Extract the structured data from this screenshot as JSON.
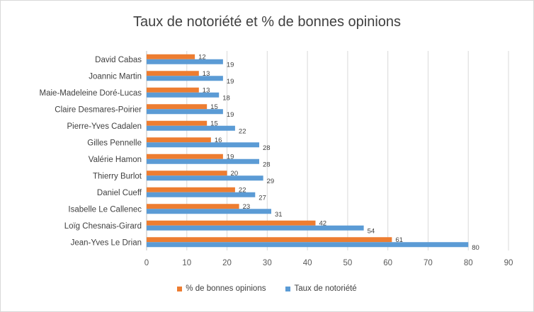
{
  "chart_data": {
    "type": "bar",
    "orientation": "horizontal",
    "title": "Taux de notoriété et % de bonnes opinions",
    "xlabel": "",
    "ylabel": "",
    "xlim": [
      0,
      90
    ],
    "x_ticks": [
      "0",
      "10",
      "20",
      "30",
      "40",
      "50",
      "60",
      "70",
      "80",
      "90"
    ],
    "grid": "vertical",
    "legend_position": "bottom",
    "categories": [
      "David Cabas",
      "Joannic Martin",
      "Maie-Madeleine Doré-Lucas",
      "Claire Desmares-Poirier",
      "Pierre-Yves Cadalen",
      "Gilles Pennelle",
      "Valérie Hamon",
      "Thierry Burlot",
      "Daniel Cueff",
      "Isabelle Le Callenec",
      "Loïg Chesnais-Girard",
      "Jean-Yves Le Drian"
    ],
    "series": [
      {
        "name": "% de bonnes opinions",
        "color": "#ED7D31",
        "values": [
          12,
          13,
          13,
          15,
          15,
          16,
          19,
          20,
          22,
          23,
          42,
          61
        ]
      },
      {
        "name": "Taux de notoriété",
        "color": "#5B9BD5",
        "values": [
          19,
          19,
          18,
          19,
          22,
          28,
          28,
          29,
          27,
          31,
          54,
          80
        ]
      }
    ]
  }
}
